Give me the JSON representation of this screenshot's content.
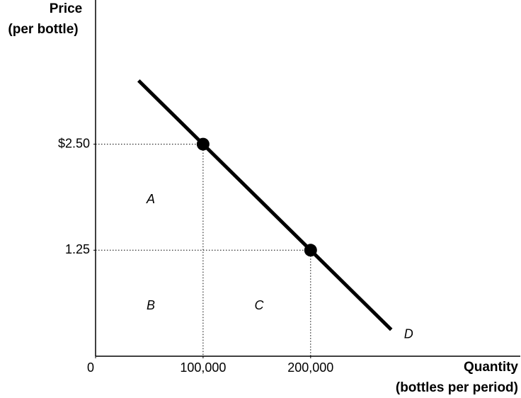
{
  "chart_data": {
    "type": "line",
    "y_label": [
      "Price",
      "(per bottle)"
    ],
    "x_label": [
      "Quantity",
      "(bottles per period)"
    ],
    "xlim": [
      0,
      395000
    ],
    "ylim": [
      0,
      4.2
    ],
    "xticks": [
      0,
      {
        "value": 100000,
        "label": "100,000"
      },
      {
        "value": 200000,
        "label": "200,000"
      }
    ],
    "yticks": [
      {
        "value": 2.5,
        "label": "$2.50"
      },
      1.25
    ],
    "series": [
      {
        "name": "D",
        "color": "#000000",
        "x": [
          40000,
          100000,
          200000,
          275000
        ],
        "values": [
          3.25,
          2.5,
          1.25,
          0.3125
        ]
      }
    ],
    "points": {
      "x": [
        100000,
        200000
      ],
      "values": [
        2.5,
        1.25
      ],
      "color": "#000000"
    },
    "area_labels": [
      "A",
      "B",
      "C"
    ]
  }
}
